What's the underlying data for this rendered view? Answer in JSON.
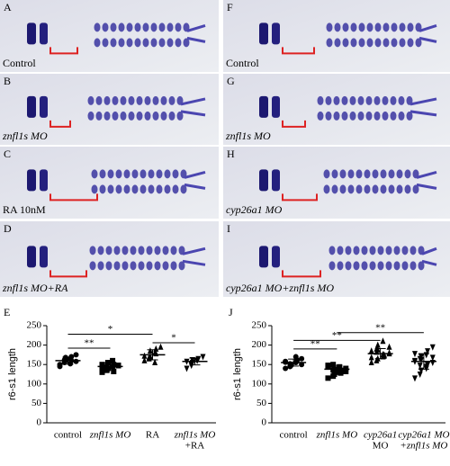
{
  "panels": [
    {
      "letter": "A",
      "caption": "Control"
    },
    {
      "letter": "B",
      "caption": "znfl1s MO"
    },
    {
      "letter": "C",
      "caption": "RA 10nM"
    },
    {
      "letter": "D",
      "caption": "znfl1s MO+RA"
    },
    {
      "letter": "F",
      "caption": "Control"
    },
    {
      "letter": "G",
      "caption": "znfl1s MO"
    },
    {
      "letter": "H",
      "caption": "cyp26a1 MO"
    },
    {
      "letter": "I",
      "caption": "cyp26a1 MO+znfl1s MO"
    }
  ],
  "chart_data": [
    {
      "type": "dot",
      "panel": "E",
      "y_label": "r6-s1 length",
      "categories": [
        [
          "control"
        ],
        [
          "znfl1s MO"
        ],
        [
          "RA"
        ],
        [
          "znfl1s MO",
          "+RA"
        ]
      ],
      "markers": [
        "circle",
        "square",
        "triangle",
        "triangle-down"
      ],
      "points": [
        [
          150,
          155,
          160,
          165,
          170,
          158,
          145,
          162,
          168,
          152,
          160,
          175
        ],
        [
          130,
          135,
          140,
          145,
          150,
          148,
          142,
          138,
          155,
          160,
          132,
          147,
          150,
          144
        ],
        [
          160,
          165,
          170,
          180,
          190,
          195,
          172,
          168,
          185,
          155,
          178
        ],
        [
          140,
          150,
          155,
          160,
          165,
          170,
          158,
          148,
          162
        ]
      ],
      "means": [
        160,
        145,
        175,
        158
      ],
      "sds": [
        9,
        9,
        13,
        9
      ],
      "significance": [
        {
          "from": 0,
          "to": 1,
          "y": 192,
          "label": "**"
        },
        {
          "from": 0,
          "to": 2,
          "y": 228,
          "label": "*"
        },
        {
          "from": 2,
          "to": 3,
          "y": 206,
          "label": "*"
        }
      ],
      "color": "#000000",
      "ylim": [
        0,
        250
      ],
      "yticks": [
        0,
        50,
        100,
        150,
        200,
        250
      ]
    },
    {
      "type": "dot",
      "panel": "J",
      "y_label": "r6-s1 length",
      "categories": [
        [
          "control"
        ],
        [
          "znfl1s MO"
        ],
        [
          "cyp26a1",
          "MO"
        ],
        [
          "cyp26a1 MO",
          "+znfl1s MO"
        ]
      ],
      "markers": [
        "circle",
        "square",
        "triangle",
        "triangle-down"
      ],
      "points": [
        [
          140,
          145,
          150,
          155,
          160,
          165,
          158,
          152,
          148,
          170,
          162,
          150,
          156,
          145
        ],
        [
          115,
          120,
          125,
          130,
          135,
          140,
          145,
          150,
          138,
          142,
          128,
          132,
          148,
          136,
          126,
          144
        ],
        [
          155,
          160,
          165,
          170,
          175,
          180,
          185,
          190,
          200,
          210,
          172,
          178,
          168,
          182,
          188,
          176,
          174,
          195
        ],
        [
          115,
          125,
          135,
          145,
          150,
          155,
          160,
          165,
          170,
          175,
          185,
          195,
          158,
          148,
          162,
          140,
          152,
          168,
          178
        ]
      ],
      "means": [
        155,
        138,
        178,
        158
      ],
      "sds": [
        9,
        10,
        13,
        20
      ],
      "significance": [
        {
          "from": 0,
          "to": 1,
          "y": 190,
          "label": "**"
        },
        {
          "from": 0,
          "to": 2,
          "y": 212,
          "label": "**"
        },
        {
          "from": 1,
          "to": 3,
          "y": 232,
          "label": "**"
        }
      ],
      "color": "#000000",
      "ylim": [
        0,
        250
      ],
      "yticks": [
        0,
        50,
        100,
        150,
        200,
        250
      ]
    }
  ]
}
